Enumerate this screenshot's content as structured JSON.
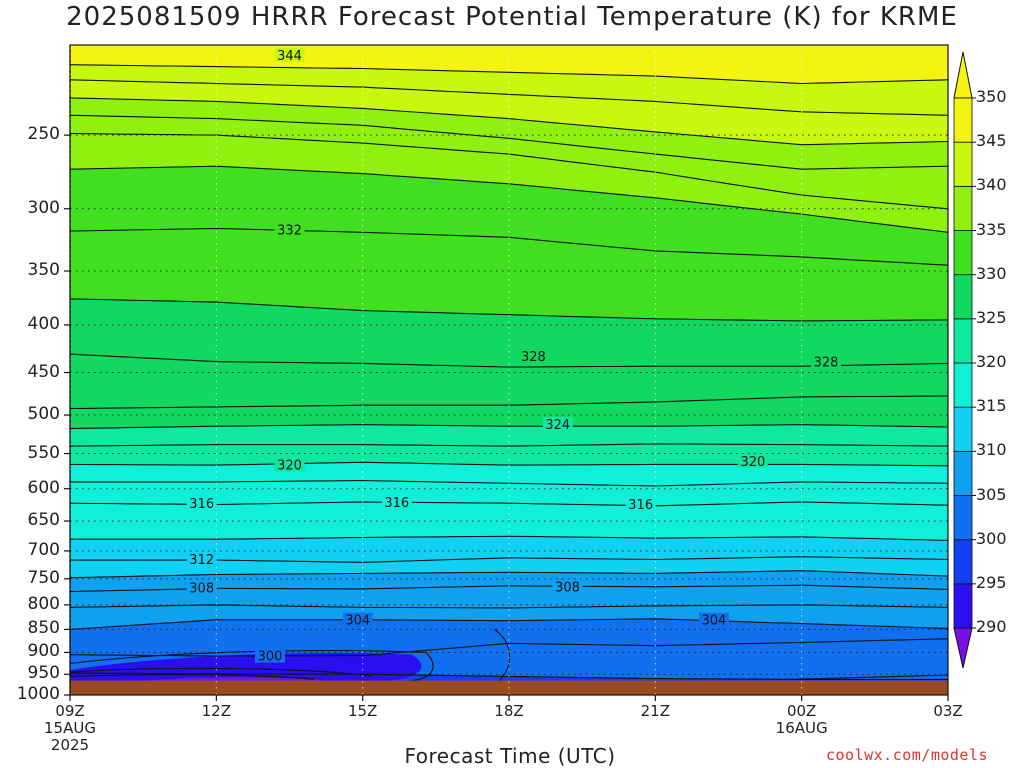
{
  "title": "2025081509 HRRR Forecast Potential Temperature (K) for KRME",
  "xlabel": "Forecast Time (UTC)",
  "credit": "coolwx.com/models",
  "colors": {
    "ground": "#9a4a24",
    "levels": [
      "#7a10e8",
      "#2a10f0",
      "#1040f0",
      "#1070f0",
      "#10a0f0",
      "#10d0f4",
      "#10f0d8",
      "#10e8a0",
      "#10d860",
      "#40e020",
      "#90f010",
      "#c8f810",
      "#f4f410"
    ]
  },
  "chart_data": {
    "type": "contour",
    "variable": "Potential Temperature (K)",
    "x_ticks": [
      {
        "hour": 0,
        "label": "09Z",
        "sub": [
          "15AUG",
          "2025"
        ]
      },
      {
        "hour": 3,
        "label": "12Z",
        "sub": []
      },
      {
        "hour": 6,
        "label": "15Z",
        "sub": []
      },
      {
        "hour": 9,
        "label": "18Z",
        "sub": []
      },
      {
        "hour": 12,
        "label": "21Z",
        "sub": []
      },
      {
        "hour": 15,
        "label": "00Z",
        "sub": [
          "16AUG"
        ]
      },
      {
        "hour": 18,
        "label": "03Z",
        "sub": []
      }
    ],
    "y_ticks": [
      250,
      300,
      350,
      400,
      450,
      500,
      550,
      600,
      650,
      700,
      750,
      800,
      850,
      900,
      950,
      1000
    ],
    "ylim": [
      200,
      1000
    ],
    "ground_pressure": 965,
    "colorbar": {
      "levels": [
        290,
        295,
        300,
        305,
        310,
        315,
        320,
        325,
        330,
        335,
        340,
        345,
        350
      ]
    },
    "times": [
      0,
      3,
      6,
      9,
      12,
      15,
      18
    ],
    "isentropes": [
      {
        "theta": 300,
        "p": [
          947,
          949,
          950,
          955,
          960,
          962,
          962
        ],
        "label_at": 4
      },
      {
        "theta": 302,
        "p": [
          905,
          908,
          907,
          880,
          885,
          878,
          870
        ]
      },
      {
        "theta": 304,
        "p": [
          850,
          830,
          830,
          832,
          828,
          838,
          848
        ],
        "label_at": 6
      },
      {
        "theta": 306,
        "p": [
          805,
          800,
          805,
          806,
          802,
          800,
          805
        ]
      },
      {
        "theta": 308,
        "p": [
          774,
          768,
          769,
          763,
          765,
          762,
          770
        ],
        "label_at": 4
      },
      {
        "theta": 310,
        "p": [
          748,
          742,
          740,
          738,
          740,
          735,
          745
        ]
      },
      {
        "theta": 312,
        "p": [
          716,
          716,
          720,
          712,
          715,
          710,
          715
        ],
        "label_at": 4
      },
      {
        "theta": 314,
        "p": [
          680,
          680,
          677,
          675,
          678,
          676,
          682
        ]
      },
      {
        "theta": 316,
        "p": [
          622,
          624,
          620,
          622,
          626,
          620,
          625
        ],
        "label_at": 9
      },
      {
        "theta": 318,
        "p": [
          590,
          590,
          588,
          592,
          596,
          590,
          592
        ]
      },
      {
        "theta": 320,
        "p": [
          565,
          566,
          562,
          566,
          565,
          565,
          567
        ],
        "label_at": 10
      },
      {
        "theta": 322,
        "p": [
          540,
          538,
          538,
          540,
          537,
          538,
          540
        ]
      },
      {
        "theta": 324,
        "p": [
          517,
          514,
          512,
          514,
          514,
          512,
          515
        ],
        "label_at": 9
      },
      {
        "theta": 326,
        "p": [
          492,
          490,
          488,
          488,
          484,
          478,
          477
        ]
      },
      {
        "theta": 328,
        "p": [
          430,
          438,
          440,
          444,
          443,
          443,
          440
        ],
        "label_at": 6
      },
      {
        "theta": 330,
        "p": [
          375,
          378,
          386,
          390,
          394,
          396,
          395
        ]
      },
      {
        "theta": 332,
        "p": [
          317,
          315,
          318,
          322,
          333,
          338,
          345
        ],
        "label_at": 4
      },
      {
        "theta": 334,
        "p": [
          272,
          270,
          275,
          282,
          292,
          304,
          318
        ]
      },
      {
        "theta": 336,
        "p": [
          249,
          250,
          255,
          262,
          274,
          290,
          300
        ]
      },
      {
        "theta": 338,
        "p": [
          238,
          240,
          244,
          252,
          262,
          272,
          270
        ]
      },
      {
        "theta": 340,
        "p": [
          228,
          230,
          234,
          240,
          248,
          256,
          254
        ]
      },
      {
        "theta": 342,
        "p": [
          218,
          220,
          222,
          226,
          230,
          236,
          238
        ]
      },
      {
        "theta": 344,
        "p": [
          210,
          211,
          212,
          214,
          216,
          220,
          218
        ],
        "label_at": 4
      }
    ],
    "contour_labels": [
      {
        "hour": 4.5,
        "p": 205,
        "text": "344"
      },
      {
        "hour": 4.5,
        "p": 316,
        "text": "332"
      },
      {
        "hour": 9.5,
        "p": 432,
        "text": "328"
      },
      {
        "hour": 15.5,
        "p": 438,
        "text": "328"
      },
      {
        "hour": 10,
        "p": 511,
        "text": "324"
      },
      {
        "hour": 4.5,
        "p": 565,
        "text": "320"
      },
      {
        "hour": 14,
        "p": 560,
        "text": "320"
      },
      {
        "hour": 2.7,
        "p": 622,
        "text": "316"
      },
      {
        "hour": 6.7,
        "p": 620,
        "text": "316"
      },
      {
        "hour": 11.7,
        "p": 623,
        "text": "316"
      },
      {
        "hour": 2.7,
        "p": 714,
        "text": "312"
      },
      {
        "hour": 2.7,
        "p": 766,
        "text": "308"
      },
      {
        "hour": 10.2,
        "p": 764,
        "text": "308"
      },
      {
        "hour": 5.9,
        "p": 830,
        "text": "304"
      },
      {
        "hour": 13.2,
        "p": 830,
        "text": "304"
      },
      {
        "hour": 4.1,
        "p": 907,
        "text": "300"
      }
    ]
  }
}
